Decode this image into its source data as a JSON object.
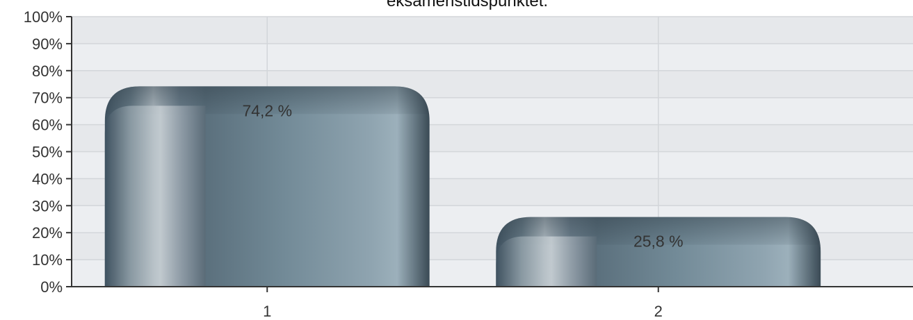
{
  "chart_data": {
    "type": "bar",
    "title": "eksamenstidspunktet.",
    "categories": [
      "1",
      "2"
    ],
    "values": [
      74.2,
      25.8
    ],
    "data_labels": [
      "74,2 %",
      "25,8 %"
    ],
    "ylim": [
      0,
      100
    ],
    "y_ticks": [
      "0%",
      "10%",
      "20%",
      "30%",
      "40%",
      "50%",
      "60%",
      "70%",
      "80%",
      "90%",
      "100%"
    ],
    "xlabel": "",
    "ylabel": "",
    "grid": true,
    "legend": "none",
    "colors": {
      "bar_dark": "#3f5260",
      "bar_mid": "#6f8794",
      "bar_light": "#9fb2bd",
      "plot_bg": "#e6e8eb",
      "plot_band": "#eceef1",
      "grid": "#d3d6da",
      "axis": "#333333"
    }
  }
}
